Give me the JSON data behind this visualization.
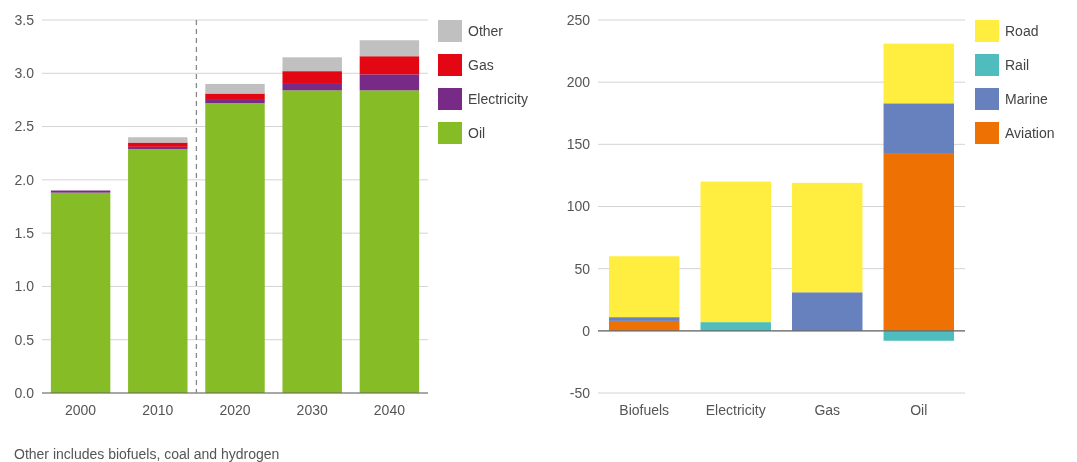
{
  "chart_data": [
    {
      "type": "bar",
      "stacked": true,
      "x": [
        2000,
        2010,
        2020,
        2030,
        2040
      ],
      "xlim": [
        1995,
        2045
      ],
      "xticks": [
        2000,
        2010,
        2020,
        2030,
        2040
      ],
      "ylim": [
        0,
        3.5
      ],
      "yticks": [
        {
          "value": 0,
          "label": "0.0"
        },
        {
          "value": 0.5,
          "label": "0.5"
        },
        {
          "value": 1,
          "label": "1.0"
        },
        {
          "value": 1.5,
          "label": "1.5"
        },
        {
          "value": 2,
          "label": "2.0"
        },
        {
          "value": 2.5,
          "label": "2.5"
        },
        {
          "value": 3,
          "label": "3.0"
        },
        {
          "value": 3.5,
          "label": "3.5"
        }
      ],
      "grid": "y",
      "legend": "right",
      "series": [
        {
          "name": "Oil",
          "color": "#86bc25",
          "values": [
            1.88,
            2.29,
            2.72,
            2.84,
            2.84
          ]
        },
        {
          "name": "Electricity",
          "color": "#772a86",
          "values": [
            0.02,
            0.02,
            0.03,
            0.06,
            0.15
          ]
        },
        {
          "name": "Gas",
          "color": "#e30613",
          "values": [
            0,
            0.04,
            0.06,
            0.12,
            0.17
          ]
        },
        {
          "name": "Other",
          "color": "#c0c0c0",
          "values": [
            null,
            0.05,
            0.09,
            0.13,
            0.15
          ]
        }
      ],
      "ref_lines": [
        {
          "axis": "x",
          "value": 2015,
          "color": "#888888",
          "line_style": "dashed"
        }
      ],
      "annotations": [
        "Other includes biofuels, coal and hydrogen"
      ]
    },
    {
      "type": "bar",
      "stacked": true,
      "categories": [
        "Biofuels",
        "Electricity",
        "Gas",
        "Oil"
      ],
      "ylim": [
        -50,
        250
      ],
      "yticks": [
        -50,
        0,
        50,
        100,
        150,
        200,
        250
      ],
      "grid": "y",
      "legend": "right",
      "series": [
        {
          "name": "Aviation",
          "color": "#ee7203",
          "values": [
            8,
            0,
            0,
            143
          ]
        },
        {
          "name": "Marine",
          "color": "#6780be",
          "values": [
            3,
            0,
            31,
            40
          ]
        },
        {
          "name": "Rail",
          "color": "#4fbdbd",
          "values": [
            0,
            7,
            0,
            -8
          ]
        },
        {
          "name": "Road",
          "color": "#ffed3f",
          "values": [
            49,
            113,
            88,
            48
          ]
        }
      ]
    }
  ]
}
